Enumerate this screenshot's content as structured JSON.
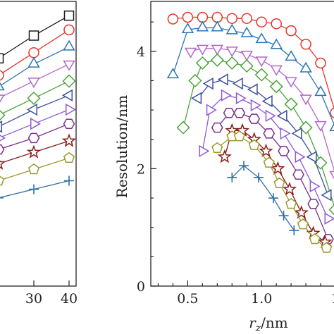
{
  "chart_data": [
    {
      "type": "line",
      "panel": "left",
      "title": "",
      "xlabel": "",
      "ylabel": "",
      "x_ticks": [
        "30",
        "40"
      ],
      "xlim": [
        20,
        42
      ],
      "ylim": [
        0,
        5
      ],
      "grid": false,
      "legend": "none",
      "x": [
        20,
        30,
        40
      ],
      "series": [
        {
          "marker": "square",
          "color": "#1a1a1a",
          "values": [
            4.0,
            4.4,
            4.75
          ]
        },
        {
          "marker": "circle",
          "color": "#e8342a",
          "values": [
            3.7,
            4.1,
            4.5
          ]
        },
        {
          "marker": "triangle-up",
          "color": "#2b74b4",
          "values": [
            3.5,
            3.9,
            4.2
          ]
        },
        {
          "marker": "triangle-down",
          "color": "#b266cc",
          "values": [
            3.3,
            3.6,
            3.9
          ]
        },
        {
          "marker": "diamond",
          "color": "#4aa33a",
          "values": [
            3.0,
            3.3,
            3.6
          ]
        },
        {
          "marker": "triangle-left",
          "color": "#3a4f9c",
          "values": [
            2.8,
            3.1,
            3.35
          ]
        },
        {
          "marker": "triangle-right",
          "color": "#8e5bd1",
          "values": [
            2.6,
            2.85,
            3.1
          ]
        },
        {
          "marker": "hexagon",
          "color": "#7b2f8e",
          "values": [
            2.4,
            2.6,
            2.85
          ]
        },
        {
          "marker": "star",
          "color": "#8b1a1a",
          "values": [
            2.15,
            2.35,
            2.55
          ]
        },
        {
          "marker": "pentagon",
          "color": "#9a9a2a",
          "values": [
            1.85,
            2.05,
            2.25
          ]
        },
        {
          "marker": "plus",
          "color": "#2f6ea6",
          "values": [
            1.55,
            1.7,
            1.85
          ]
        }
      ]
    },
    {
      "type": "line",
      "panel": "right",
      "title": "",
      "xlabel_main": "r",
      "xlabel_sub": "z",
      "xlabel_unit": "/nm",
      "ylabel": "Resolution/nm",
      "x_ticks": [
        "0.5",
        "1.0",
        "1"
      ],
      "y_ticks": [
        "0",
        "2",
        "4"
      ],
      "xlim": [
        0.25,
        1.5
      ],
      "ylim": [
        0,
        4.85
      ],
      "grid": false,
      "legend": "none",
      "series": [
        {
          "marker": "circle",
          "color": "#e8342a",
          "x": [
            0.4,
            0.5,
            0.6,
            0.7,
            0.8,
            0.9,
            1.0,
            1.1,
            1.2,
            1.3,
            1.4,
            1.5
          ],
          "y": [
            4.55,
            4.58,
            4.58,
            4.58,
            4.56,
            4.56,
            4.5,
            4.47,
            4.35,
            4.12,
            3.8,
            2.95
          ]
        },
        {
          "marker": "triangle-up",
          "color": "#2b74b4",
          "x": [
            0.4,
            0.5,
            0.6,
            0.7,
            0.8,
            0.9,
            1.0,
            1.1,
            1.2,
            1.3,
            1.4,
            1.5
          ],
          "y": [
            3.6,
            4.37,
            4.4,
            4.4,
            4.35,
            4.3,
            4.2,
            4.1,
            3.9,
            3.7,
            3.3,
            2.7
          ]
        },
        {
          "marker": "triangle-down",
          "color": "#b266cc",
          "x": [
            0.52,
            0.6,
            0.7,
            0.8,
            0.9,
            1.0,
            1.1,
            1.2,
            1.3,
            1.4,
            1.5
          ],
          "y": [
            4.0,
            4.05,
            4.05,
            4.02,
            3.95,
            3.85,
            3.7,
            3.5,
            3.2,
            2.75,
            1.9
          ]
        },
        {
          "marker": "diamond",
          "color": "#4aa33a",
          "x": [
            0.47,
            0.55,
            0.6,
            0.7,
            0.8,
            0.9,
            1.0,
            1.1,
            1.2,
            1.3,
            1.4,
            1.5
          ],
          "y": [
            2.7,
            3.5,
            3.8,
            3.85,
            3.8,
            3.75,
            3.6,
            3.4,
            3.1,
            2.7,
            2.1,
            1.3
          ]
        },
        {
          "marker": "triangle-left",
          "color": "#3a4f9c",
          "x": [
            0.57,
            0.65,
            0.75,
            0.85,
            0.95,
            1.05,
            1.15,
            1.25,
            1.35,
            1.45
          ],
          "y": [
            3.2,
            3.45,
            3.52,
            3.45,
            3.35,
            3.15,
            2.9,
            2.6,
            2.2,
            1.55
          ]
        },
        {
          "marker": "triangle-right",
          "color": "#8e5bd1",
          "x": [
            0.6,
            0.65,
            0.75,
            0.85,
            0.95,
            1.05,
            1.15,
            1.25,
            1.35,
            1.45
          ],
          "y": [
            2.3,
            3.0,
            3.25,
            3.2,
            3.08,
            2.9,
            2.6,
            2.2,
            1.7,
            1.15
          ]
        },
        {
          "marker": "hexagon",
          "color": "#7b2f8e",
          "x": [
            0.7,
            0.78,
            0.85,
            0.95,
            1.05,
            1.15,
            1.25,
            1.35,
            1.45
          ],
          "y": [
            2.7,
            2.95,
            2.95,
            2.85,
            2.6,
            2.3,
            1.9,
            1.4,
            0.8
          ]
        },
        {
          "marker": "star",
          "color": "#8b1a1a",
          "x": [
            0.75,
            0.8,
            0.87,
            0.95,
            1.03,
            1.11,
            1.19,
            1.27,
            1.35,
            1.43
          ],
          "y": [
            2.2,
            2.65,
            2.65,
            2.5,
            2.3,
            2.0,
            1.65,
            1.25,
            0.9,
            0.75
          ]
        },
        {
          "marker": "pentagon",
          "color": "#9a9a2a",
          "x": [
            0.7,
            0.8,
            0.85,
            0.95,
            1.05,
            1.12,
            1.2,
            1.28,
            1.36,
            1.44
          ],
          "y": [
            2.35,
            2.55,
            2.55,
            2.4,
            2.1,
            1.75,
            1.4,
            1.05,
            0.8,
            0.65
          ]
        },
        {
          "marker": "plus",
          "color": "#2f6ea6",
          "x": [
            0.8,
            0.88,
            0.98,
            1.08,
            1.15,
            1.22
          ],
          "y": [
            1.85,
            2.05,
            1.85,
            1.5,
            1.2,
            0.95
          ]
        }
      ]
    }
  ]
}
